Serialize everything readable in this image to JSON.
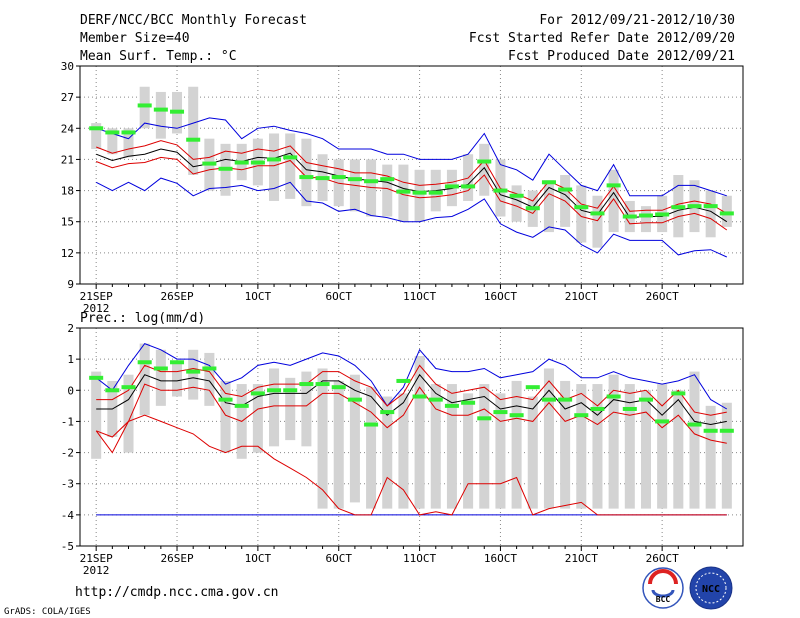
{
  "header": {
    "title": "DERF/NCC/BCC Monthly Forecast",
    "member_size": "Member Size=40",
    "variable_label": "Mean Surf. Temp.: °C",
    "period": "For 2012/09/21-2012/10/30",
    "started": "Fcst Started Refer Date 2012/09/20",
    "produced": "Fcst Produced Date 2012/09/21"
  },
  "footer": {
    "url": "http://cmdp.ncc.cma.gov.cn",
    "grads": "GrADS: COLA/IGES",
    "logo_bcc": "BCC",
    "logo_ncc": "NCC"
  },
  "colors": {
    "box": "#d3d3d3",
    "mean": "#000000",
    "band": "#dd0000",
    "envelope": "#0000dd",
    "median": "#33ee33",
    "grid": "#888888"
  },
  "chart_data": [
    {
      "type": "box",
      "title": "Mean Surf. Temp.: °C",
      "ylabel": "°C",
      "ylim": [
        9,
        30
      ],
      "yticks": [
        9,
        12,
        15,
        18,
        21,
        24,
        27,
        30
      ],
      "xlabels": [
        {
          "day": 1,
          "label": "21SEP",
          "sub": "2012"
        },
        {
          "day": 6,
          "label": "26SEP"
        },
        {
          "day": 11,
          "label": "1OCT"
        },
        {
          "day": 16,
          "label": "6OCT"
        },
        {
          "day": 21,
          "label": "11OCT"
        },
        {
          "day": 26,
          "label": "16OCT"
        },
        {
          "day": 31,
          "label": "21OCT"
        },
        {
          "day": 36,
          "label": "26OCT"
        }
      ],
      "days": [
        1,
        2,
        3,
        4,
        5,
        6,
        7,
        8,
        9,
        10,
        11,
        12,
        13,
        14,
        15,
        16,
        17,
        18,
        19,
        20,
        21,
        22,
        23,
        24,
        25,
        26,
        27,
        28,
        29,
        30,
        31,
        32,
        33,
        34,
        35,
        36,
        37,
        38,
        39,
        40
      ],
      "box_low": [
        22.0,
        21.5,
        21.2,
        24.0,
        23.0,
        23.5,
        19.5,
        18.0,
        17.5,
        19.0,
        18.5,
        17.0,
        17.2,
        16.5,
        17.0,
        16.5,
        16.0,
        15.5,
        15.5,
        15.0,
        15.0,
        16.0,
        16.5,
        17.0,
        17.5,
        15.5,
        15.0,
        14.5,
        14.0,
        14.5,
        13.0,
        12.5,
        14.0,
        14.0,
        14.0,
        14.0,
        13.5,
        14.0,
        13.5,
        14.5
      ],
      "box_high": [
        24.5,
        24.0,
        24.0,
        28.0,
        27.5,
        27.5,
        28.0,
        23.0,
        22.5,
        22.5,
        23.0,
        23.5,
        23.5,
        23.0,
        21.5,
        21.0,
        21.0,
        21.0,
        20.5,
        20.5,
        20.0,
        20.0,
        20.0,
        21.5,
        22.5,
        21.0,
        18.5,
        18.0,
        19.0,
        19.5,
        18.5,
        17.5,
        20.0,
        17.0,
        16.5,
        17.5,
        19.5,
        19.0,
        18.0,
        17.5
      ],
      "median": [
        24.0,
        23.6,
        23.6,
        26.2,
        25.8,
        25.6,
        22.9,
        20.6,
        20.1,
        20.7,
        20.7,
        21.0,
        21.2,
        19.3,
        19.2,
        19.3,
        19.1,
        18.9,
        19.1,
        17.9,
        17.8,
        17.8,
        18.4,
        18.4,
        20.8,
        18.0,
        17.5,
        16.3,
        18.8,
        18.1,
        16.4,
        15.8,
        18.5,
        15.5,
        15.6,
        15.7,
        16.4,
        16.5,
        16.5,
        15.8
      ],
      "mean": [
        21.5,
        20.9,
        21.3,
        21.5,
        22.0,
        21.7,
        20.3,
        20.6,
        21.0,
        20.8,
        21.2,
        21.1,
        21.6,
        20.0,
        19.8,
        19.4,
        19.1,
        19.0,
        18.8,
        18.2,
        17.9,
        18.0,
        18.2,
        18.6,
        20.2,
        17.6,
        17.1,
        16.4,
        18.3,
        17.6,
        16.1,
        15.7,
        17.8,
        15.4,
        15.5,
        15.5,
        16.1,
        16.4,
        16.0,
        15.0
      ],
      "band_upper": [
        22.2,
        21.6,
        22.0,
        22.3,
        22.8,
        22.4,
        21.0,
        21.2,
        21.8,
        21.6,
        22.0,
        21.8,
        22.3,
        20.7,
        20.4,
        20.1,
        19.7,
        19.7,
        19.4,
        18.8,
        18.5,
        18.6,
        18.8,
        19.2,
        20.9,
        18.2,
        17.7,
        17.0,
        18.9,
        18.2,
        16.7,
        16.3,
        18.4,
        16.0,
        16.1,
        16.1,
        16.7,
        17.0,
        16.7,
        15.8
      ],
      "band_lower": [
        20.8,
        20.2,
        20.6,
        20.7,
        21.2,
        21.0,
        19.6,
        20.0,
        20.2,
        20.0,
        20.4,
        20.4,
        20.9,
        19.3,
        19.2,
        18.7,
        18.5,
        18.3,
        18.2,
        17.6,
        17.3,
        17.4,
        17.6,
        18.0,
        19.5,
        17.0,
        16.5,
        15.8,
        17.7,
        17.0,
        15.5,
        15.1,
        17.2,
        14.8,
        14.9,
        14.9,
        15.5,
        15.8,
        15.3,
        14.2
      ],
      "env_max": [
        24.0,
        23.5,
        23.0,
        24.5,
        24.2,
        24.0,
        24.5,
        25.0,
        24.8,
        23.0,
        24.0,
        24.2,
        23.8,
        23.5,
        23.0,
        22.0,
        22.0,
        22.0,
        21.5,
        21.5,
        21.0,
        21.0,
        21.0,
        21.5,
        23.5,
        20.5,
        20.0,
        19.0,
        21.5,
        20.0,
        18.5,
        18.0,
        20.5,
        17.5,
        17.5,
        17.5,
        18.5,
        18.5,
        18.0,
        17.5
      ],
      "env_min": [
        18.8,
        18.0,
        18.8,
        18.0,
        19.2,
        18.7,
        17.5,
        18.2,
        18.3,
        18.5,
        18.0,
        18.2,
        18.8,
        17.0,
        16.8,
        16.0,
        16.2,
        15.6,
        15.4,
        15.0,
        15.0,
        15.4,
        15.5,
        16.2,
        17.2,
        14.8,
        14.0,
        13.5,
        14.5,
        14.2,
        12.8,
        12.0,
        13.8,
        13.2,
        13.2,
        13.2,
        11.8,
        12.2,
        12.3,
        11.6
      ]
    },
    {
      "type": "box",
      "title": "Prec.: log(mm/d)",
      "ylabel": "log(mm/d)",
      "ylim": [
        -5,
        2
      ],
      "yticks": [
        -5,
        -4,
        -3,
        -2,
        -1,
        0,
        1,
        2
      ],
      "xlabels": [
        {
          "day": 1,
          "label": "21SEP",
          "sub": "2012"
        },
        {
          "day": 6,
          "label": "26SEP"
        },
        {
          "day": 11,
          "label": "1OCT"
        },
        {
          "day": 16,
          "label": "6OCT"
        },
        {
          "day": 21,
          "label": "11OCT"
        },
        {
          "day": 26,
          "label": "16OCT"
        },
        {
          "day": 31,
          "label": "21OCT"
        },
        {
          "day": 36,
          "label": "26OCT"
        }
      ],
      "days": [
        1,
        2,
        3,
        4,
        5,
        6,
        7,
        8,
        9,
        10,
        11,
        12,
        13,
        14,
        15,
        16,
        17,
        18,
        19,
        20,
        21,
        22,
        23,
        24,
        25,
        26,
        27,
        28,
        29,
        30,
        31,
        32,
        33,
        34,
        35,
        36,
        37,
        38,
        39,
        40
      ],
      "box_low": [
        -2.2,
        -1.5,
        -2.0,
        -0.8,
        -0.5,
        -0.2,
        -0.3,
        -0.5,
        -2.0,
        -2.2,
        -2.0,
        -1.8,
        -1.6,
        -1.8,
        -3.8,
        -3.8,
        -3.6,
        -3.8,
        -3.8,
        -3.8,
        -3.8,
        -3.8,
        -3.8,
        -3.8,
        -3.8,
        -3.8,
        -3.8,
        -3.8,
        -3.8,
        -3.8,
        -3.8,
        -3.8,
        -3.8,
        -3.8,
        -3.8,
        -3.8,
        -3.8,
        -3.8,
        -3.8,
        -3.8
      ],
      "box_high": [
        0.6,
        0.3,
        0.5,
        1.5,
        1.3,
        0.9,
        1.3,
        1.2,
        0.3,
        0.2,
        0.2,
        0.7,
        0.4,
        0.6,
        0.7,
        0.3,
        0.5,
        0.1,
        -0.2,
        -0.1,
        1.1,
        0.2,
        0.2,
        -0.1,
        0.2,
        -0.1,
        0.3,
        -0.2,
        0.7,
        0.3,
        0.2,
        0.2,
        0.5,
        0.2,
        0.0,
        0.2,
        0.0,
        0.6,
        -0.5,
        -0.4
      ],
      "median": [
        0.4,
        0.0,
        0.1,
        0.9,
        0.7,
        0.9,
        0.6,
        0.7,
        -0.3,
        -0.5,
        -0.1,
        0.0,
        0.0,
        0.2,
        0.2,
        0.1,
        -0.3,
        -1.1,
        -0.7,
        0.3,
        -0.2,
        -0.3,
        -0.5,
        -0.4,
        -0.9,
        -0.7,
        -0.8,
        0.1,
        -0.3,
        -0.3,
        -0.8,
        -0.6,
        -0.2,
        -0.6,
        -0.3,
        -1.0,
        -0.1,
        -1.1,
        -1.3,
        -1.3
      ],
      "mean": [
        -0.6,
        -0.6,
        -0.3,
        0.5,
        0.3,
        0.3,
        0.4,
        0.3,
        -0.4,
        -0.5,
        -0.2,
        -0.1,
        -0.1,
        -0.1,
        0.3,
        0.3,
        0.0,
        -0.2,
        -0.8,
        -0.4,
        0.5,
        -0.1,
        -0.4,
        -0.3,
        -0.2,
        -0.6,
        -0.5,
        -0.6,
        0.0,
        -0.6,
        -0.4,
        -0.8,
        -0.3,
        -0.4,
        -0.3,
        -0.8,
        -0.3,
        -1.0,
        -1.1,
        -1.0
      ],
      "band_upper": [
        -0.3,
        -0.3,
        0.0,
        0.8,
        0.6,
        0.6,
        0.7,
        0.6,
        -0.1,
        -0.2,
        0.1,
        0.2,
        0.2,
        0.2,
        0.6,
        0.6,
        0.3,
        0.1,
        -0.5,
        -0.1,
        0.8,
        0.2,
        -0.1,
        0.0,
        0.1,
        -0.3,
        -0.2,
        -0.3,
        0.3,
        -0.3,
        -0.1,
        -0.5,
        0.0,
        -0.1,
        0.0,
        -0.5,
        0.0,
        -0.7,
        -0.8,
        -0.7
      ],
      "band_lower": [
        -1.3,
        -1.5,
        -1.0,
        0.2,
        0.0,
        0.0,
        0.1,
        0.0,
        -0.8,
        -1.0,
        -0.6,
        -0.5,
        -0.5,
        -0.5,
        -0.1,
        -0.1,
        -0.4,
        -0.7,
        -1.2,
        -0.8,
        0.1,
        -0.6,
        -0.8,
        -0.8,
        -0.6,
        -1.0,
        -0.9,
        -1.0,
        -0.4,
        -1.0,
        -0.8,
        -1.1,
        -0.7,
        -0.8,
        -0.7,
        -1.2,
        -0.8,
        -1.4,
        -1.6,
        -1.7
      ],
      "band_min": [
        -1.3,
        -2.0,
        -1.0,
        -0.8,
        -1.0,
        -1.2,
        -1.4,
        -1.8,
        -2.0,
        -1.8,
        -1.8,
        -2.2,
        -2.5,
        -2.8,
        -3.2,
        -3.8,
        -4.0,
        -4.0,
        -2.8,
        -3.2,
        -4.0,
        -3.9,
        -4.0,
        -3.0,
        -3.0,
        -3.0,
        -2.8,
        -4.0,
        -3.8,
        -3.7,
        -3.6,
        -4.0,
        -4.0,
        -4.0,
        -4.0,
        -4.0,
        -4.0,
        -4.0,
        -4.0,
        -4.0
      ],
      "env_max": [
        0.4,
        0.0,
        0.8,
        1.5,
        1.3,
        1.0,
        1.0,
        0.8,
        0.2,
        0.4,
        0.8,
        0.9,
        0.8,
        1.0,
        1.2,
        1.1,
        0.8,
        0.3,
        -0.5,
        0.1,
        1.3,
        0.7,
        0.6,
        0.6,
        0.7,
        0.4,
        0.5,
        0.6,
        1.0,
        0.8,
        0.4,
        0.4,
        0.6,
        0.4,
        0.3,
        0.2,
        0.3,
        0.5,
        -0.3,
        -0.6
      ],
      "env_min": [
        -4.0,
        -4.0,
        -4.0,
        -4.0,
        -4.0,
        -4.0,
        -4.0,
        -4.0,
        -4.0,
        -4.0,
        -4.0,
        -4.0,
        -4.0,
        -4.0,
        -4.0,
        -4.0,
        -4.0,
        -4.0,
        -4.0,
        -4.0,
        -4.0,
        -4.0,
        -4.0,
        -4.0,
        -4.0,
        -4.0,
        -4.0,
        -4.0,
        -4.0,
        -4.0,
        -4.0,
        -4.0,
        -4.0,
        -4.0,
        -4.0,
        -4.0,
        -4.0,
        -4.0,
        -4.0,
        -4.0
      ]
    }
  ]
}
